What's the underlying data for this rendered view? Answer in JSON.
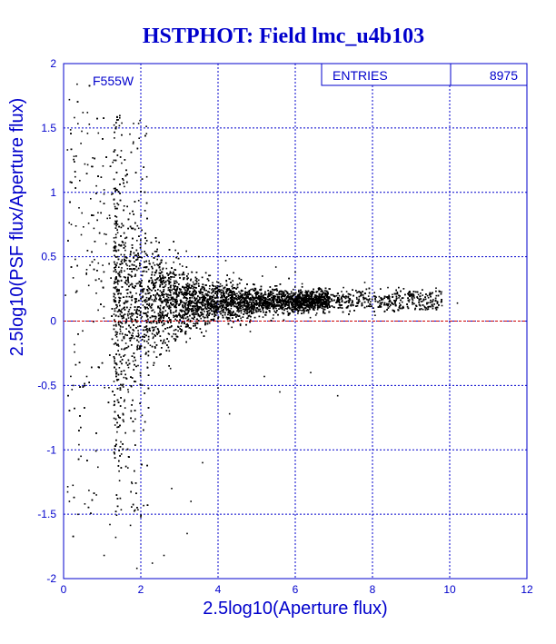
{
  "colors": {
    "frame": "#0000cc",
    "text": "#0000cc",
    "grid": "#0000cc",
    "points": "#000000",
    "zero_line": "#cc0000",
    "background": "#ffffff"
  },
  "chart_data": {
    "type": "scatter",
    "title": "HSTPHOT: Field lmc_u4b103",
    "xlabel": "2.5log10(Aperture flux)",
    "ylabel": "2.5log10(PSF flux/Aperture flux)",
    "xlim": [
      0,
      12
    ],
    "ylim": [
      -2,
      2
    ],
    "x_ticks": [
      "0",
      "2",
      "4",
      "6",
      "8",
      "10",
      "12"
    ],
    "y_ticks": [
      "-2",
      "-1.5",
      "-1",
      "-0.5",
      "0",
      "0.5",
      "1",
      "1.5",
      "2"
    ],
    "grid": true,
    "filter_label": "F555W",
    "stats": {
      "label": "ENTRIES",
      "value": "8975"
    },
    "reference_line_y": 0,
    "series": [
      {
        "entries": 8975,
        "points": [
          [
            0.15,
            1.72
          ],
          [
            0.28,
            1.58
          ],
          [
            0.35,
            1.84
          ],
          [
            0.5,
            1.62
          ],
          [
            0.9,
            1.46
          ],
          [
            0.62,
            1.62
          ],
          [
            0.1,
            1.33
          ],
          [
            0.45,
            1.38
          ],
          [
            0.75,
            1.2
          ],
          [
            0.55,
            1.22
          ],
          [
            0.85,
            1.05
          ],
          [
            0.3,
            1.12
          ],
          [
            1.05,
            1.02
          ],
          [
            0.95,
            0.93
          ],
          [
            0.7,
            0.95
          ],
          [
            0.4,
            0.88
          ],
          [
            1.2,
            0.8
          ],
          [
            0.65,
            0.76
          ],
          [
            0.2,
            0.75
          ],
          [
            1.35,
            0.55
          ],
          [
            1.1,
            0.6
          ],
          [
            0.9,
            0.45
          ],
          [
            0.6,
            0.4
          ],
          [
            0.3,
            0.48
          ],
          [
            1.5,
            0.38
          ],
          [
            1.7,
            0.47
          ],
          [
            0.05,
            0.2
          ],
          [
            0.25,
            -0.5
          ],
          [
            0.6,
            -0.43
          ],
          [
            0.45,
            -1.05
          ],
          [
            0.15,
            -1.4
          ],
          [
            0.55,
            -1.42
          ],
          [
            0.85,
            -1.35
          ],
          [
            1.2,
            -1.58
          ],
          [
            1.35,
            -1.68
          ],
          [
            1.05,
            -1.82
          ],
          [
            1.9,
            -1.92
          ],
          [
            2.0,
            -1.52
          ],
          [
            2.3,
            -1.88
          ],
          [
            2.6,
            -1.82
          ],
          [
            3.3,
            -1.4
          ],
          [
            3.6,
            -1.1
          ],
          [
            3.2,
            -1.65
          ],
          [
            2.8,
            -1.3
          ],
          [
            4.0,
            -0.52
          ],
          [
            4.3,
            -0.72
          ],
          [
            5.2,
            -0.43
          ],
          [
            6.4,
            -0.4
          ],
          [
            7.1,
            -0.58
          ],
          [
            5.6,
            -0.55
          ],
          [
            9.3,
            0.2
          ],
          [
            10.2,
            0.14
          ],
          [
            9.8,
            0.12
          ],
          [
            6.0,
            0.38
          ],
          [
            5.5,
            0.42
          ],
          [
            7.8,
            0.3
          ],
          [
            8.4,
            0.26
          ],
          [
            3.5,
            0.5
          ],
          [
            4.2,
            0.47
          ],
          [
            2.4,
            0.62
          ],
          [
            2.9,
            0.55
          ],
          [
            1.8,
            0.72
          ],
          [
            1.6,
            0.58
          ]
        ]
      }
    ]
  }
}
